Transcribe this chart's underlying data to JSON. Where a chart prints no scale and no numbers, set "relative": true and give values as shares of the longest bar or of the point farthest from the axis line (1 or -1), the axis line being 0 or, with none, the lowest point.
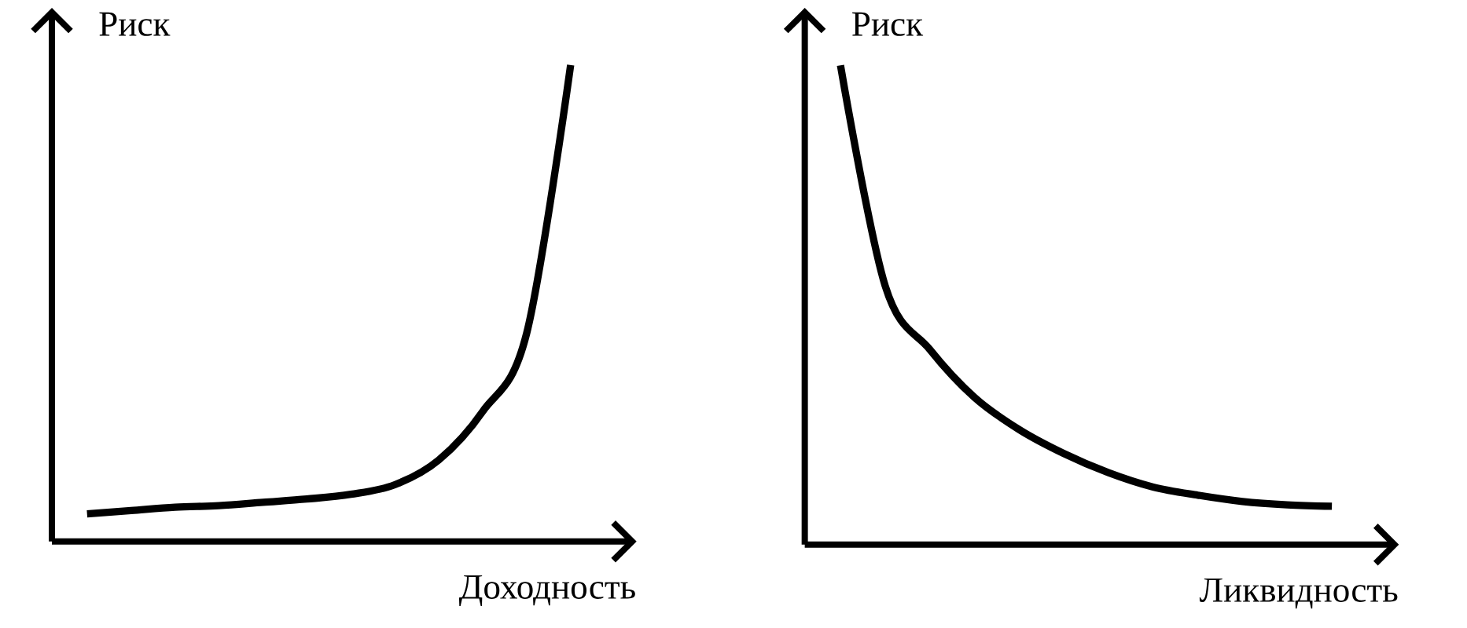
{
  "chart_data": [
    {
      "type": "line",
      "relative": true,
      "xlabel": "Доходность",
      "ylabel": "Риск",
      "color": "#000000",
      "marker": "none",
      "categories": [
        null,
        null,
        null,
        null,
        null,
        null,
        null,
        null,
        null,
        null,
        null,
        null
      ],
      "values": [
        0.058,
        0.065,
        0.072,
        0.075,
        0.082,
        0.089,
        0.099,
        0.119,
        0.171,
        0.273,
        0.437,
        1
      ]
    },
    {
      "type": "line",
      "relative": true,
      "xlabel": "Ликвидность",
      "ylabel": "Риск",
      "color": "#000000",
      "marker": "none",
      "categories": [
        null,
        null,
        null,
        null,
        null,
        null,
        null,
        null,
        null,
        null,
        null,
        null
      ],
      "values": [
        1,
        0.54,
        0.407,
        0.307,
        0.24,
        0.19,
        0.15,
        0.12,
        0.103,
        0.09,
        0.083,
        0.08
      ]
    }
  ]
}
